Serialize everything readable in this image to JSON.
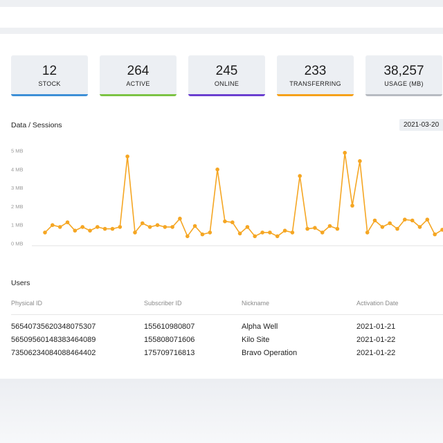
{
  "stats": [
    {
      "value": "12",
      "label": "STOCK",
      "color": "#3d8fd6"
    },
    {
      "value": "264",
      "label": "ACTIVE",
      "color": "#7cc343"
    },
    {
      "value": "245",
      "label": "ONLINE",
      "color": "#6a3fd0"
    },
    {
      "value": "233",
      "label": "TRANSFERRING",
      "color": "#f5a11a"
    },
    {
      "value": "38,257",
      "label": "USAGE (MB)",
      "color": "#b7bbc1"
    }
  ],
  "chart_section": {
    "title": "Data / Sessions",
    "date_value": "2021-03-20"
  },
  "chart_data": {
    "type": "line",
    "title": "Data / Sessions",
    "xlabel": "",
    "ylabel": "",
    "y_unit": "MB",
    "yticks": [
      "0 MB",
      "1 MB",
      "2 MB",
      "3 MB",
      "4 MB",
      "5 MB"
    ],
    "ylim": [
      0,
      5
    ],
    "grid": false,
    "color": "#f5a623",
    "series": [
      {
        "name": "",
        "values": [
          0.6,
          1.0,
          0.9,
          1.15,
          0.7,
          0.9,
          0.7,
          0.9,
          0.8,
          0.8,
          0.9,
          4.7,
          0.6,
          1.1,
          0.9,
          1.0,
          0.9,
          0.9,
          1.35,
          0.4,
          0.95,
          0.5,
          0.6,
          4.0,
          1.2,
          1.15,
          0.55,
          0.9,
          0.4,
          0.6,
          0.6,
          0.4,
          0.7,
          0.6,
          3.65,
          0.8,
          0.85,
          0.6,
          0.95,
          0.8,
          4.9,
          2.05,
          4.45,
          0.6,
          1.25,
          0.9,
          1.1,
          0.8,
          1.3,
          1.25,
          0.9,
          1.3,
          0.5,
          0.75
        ]
      }
    ]
  },
  "users": {
    "title": "Users",
    "columns": [
      "Physical ID",
      "Subscriber ID",
      "Nickname",
      "Activation Date"
    ],
    "rows": [
      [
        "56540735620348075307",
        "155610980807",
        "Alpha Well",
        "2021-01-21"
      ],
      [
        "56509560148383464089",
        "155808071606",
        "Kilo Site",
        "2021-01-22"
      ],
      [
        "73506234084088464402",
        "175709716813",
        "Bravo Operation",
        "2021-01-22"
      ]
    ]
  }
}
